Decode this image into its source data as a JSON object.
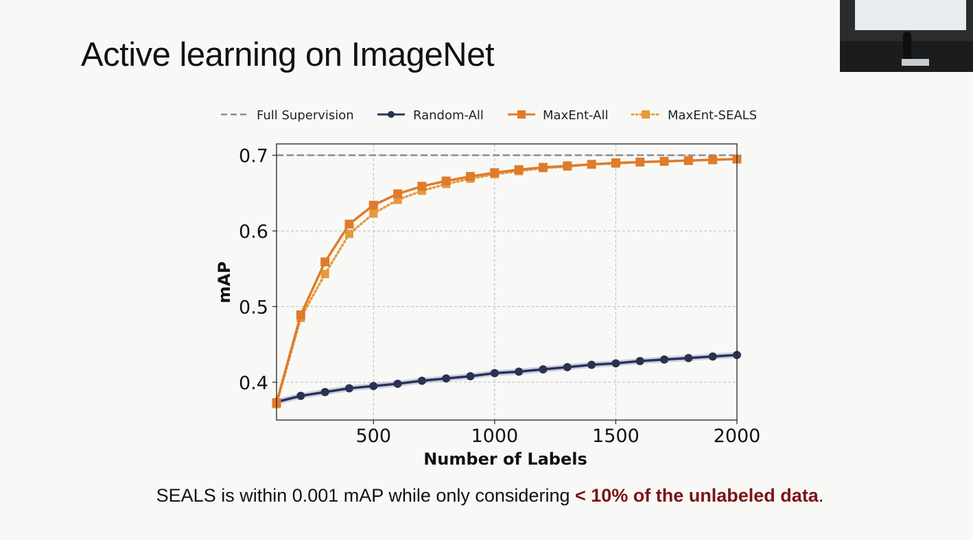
{
  "slide": {
    "title": "Active learning on ImageNet",
    "caption_plain": "SEALS is within 0.001 mAP while only considering ",
    "caption_emphasis": "< 10% of the unlabeled data",
    "caption_end": "."
  },
  "colors": {
    "full_supervision": "#8c8c8c",
    "random": "#2b3152",
    "random_band": "#a9afd6",
    "maxent_all": "#e07b2b",
    "maxent_seals": "#e59a3c",
    "grid": "#b8b8b8",
    "caption_emphasis": "#7a1414"
  },
  "chart_data": {
    "type": "line",
    "xlabel": "Number of Labels",
    "ylabel": "mAP",
    "xlim": [
      100,
      2000
    ],
    "ylim": [
      0.35,
      0.715
    ],
    "xticks": [
      500,
      1000,
      1500,
      2000
    ],
    "xtick_labels": [
      "500",
      "1000",
      "1500",
      "2000"
    ],
    "yticks": [
      0.4,
      0.5,
      0.6,
      0.7
    ],
    "ytick_labels": [
      "0.4",
      "0.5",
      "0.6",
      "0.7"
    ],
    "grid": true,
    "legend_position": "top",
    "x": [
      100,
      200,
      300,
      400,
      500,
      600,
      700,
      800,
      900,
      1000,
      1100,
      1200,
      1300,
      1400,
      1500,
      1600,
      1700,
      1800,
      1900,
      2000
    ],
    "series": [
      {
        "name": "Full Supervision",
        "style": "dashed",
        "marker": "none",
        "value": 0.7
      },
      {
        "name": "Random-All",
        "style": "solid",
        "marker": "circle",
        "values": [
          0.374,
          0.382,
          0.387,
          0.392,
          0.395,
          0.398,
          0.402,
          0.405,
          0.408,
          0.412,
          0.414,
          0.417,
          0.42,
          0.423,
          0.425,
          0.428,
          0.43,
          0.432,
          0.434,
          0.436
        ]
      },
      {
        "name": "MaxEnt-All",
        "style": "solid",
        "marker": "square",
        "values": [
          0.373,
          0.489,
          0.559,
          0.609,
          0.634,
          0.649,
          0.659,
          0.666,
          0.672,
          0.677,
          0.681,
          0.684,
          0.686,
          0.688,
          0.69,
          0.691,
          0.692,
          0.693,
          0.694,
          0.695
        ]
      },
      {
        "name": "MaxEnt-SEALS",
        "style": "dotted",
        "marker": "square",
        "values": [
          0.371,
          0.485,
          0.543,
          0.596,
          0.623,
          0.641,
          0.653,
          0.662,
          0.669,
          0.675,
          0.679,
          0.683,
          0.685,
          0.688,
          0.689,
          0.691,
          0.692,
          0.693,
          0.694,
          0.695
        ]
      }
    ]
  }
}
